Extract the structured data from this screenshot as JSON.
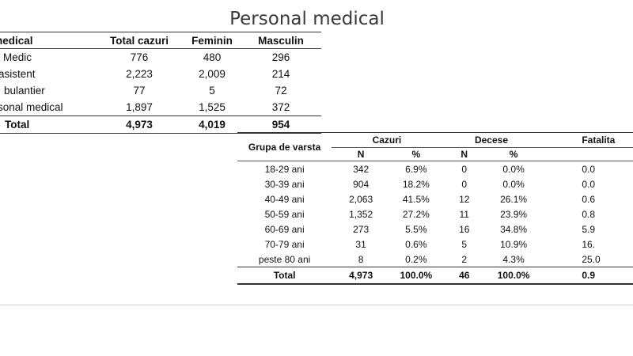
{
  "title": "Personal medical",
  "table1": {
    "headers": [
      "nal medical",
      "Total cazuri",
      "Feminin",
      "Masculin"
    ],
    "rows": [
      [
        "Medic",
        "776",
        "480",
        "296"
      ],
      [
        "asistent",
        "2,223",
        "2,009",
        "214"
      ],
      [
        "bulantier",
        "77",
        "5",
        "72"
      ],
      [
        "sonal medical",
        "1,897",
        "1,525",
        "372"
      ]
    ],
    "total": [
      "Total",
      "4,973",
      "4,019",
      "954"
    ]
  },
  "table2": {
    "row_header": "Grupa de varsta",
    "groups": [
      "Cazuri",
      "Decese",
      "Fatalita"
    ],
    "subheaders": [
      "N",
      "%",
      "N",
      "%",
      ""
    ],
    "rows": [
      [
        "18-29 ani",
        "342",
        "6.9%",
        "0",
        "0.0%",
        "0.0"
      ],
      [
        "30-39 ani",
        "904",
        "18.2%",
        "0",
        "0.0%",
        "0.0"
      ],
      [
        "40-49 ani",
        "2,063",
        "41.5%",
        "12",
        "26.1%",
        "0.6"
      ],
      [
        "50-59 ani",
        "1,352",
        "27.2%",
        "11",
        "23.9%",
        "0.8"
      ],
      [
        "60-69 ani",
        "273",
        "5.5%",
        "16",
        "34.8%",
        "5.9"
      ],
      [
        "70-79 ani",
        "31",
        "0.6%",
        "5",
        "10.9%",
        "16."
      ],
      [
        "peste 80 ani",
        "8",
        "0.2%",
        "2",
        "4.3%",
        "25.0"
      ]
    ],
    "total": [
      "Total",
      "4,973",
      "100.0%",
      "46",
      "100.0%",
      "0.9"
    ]
  }
}
